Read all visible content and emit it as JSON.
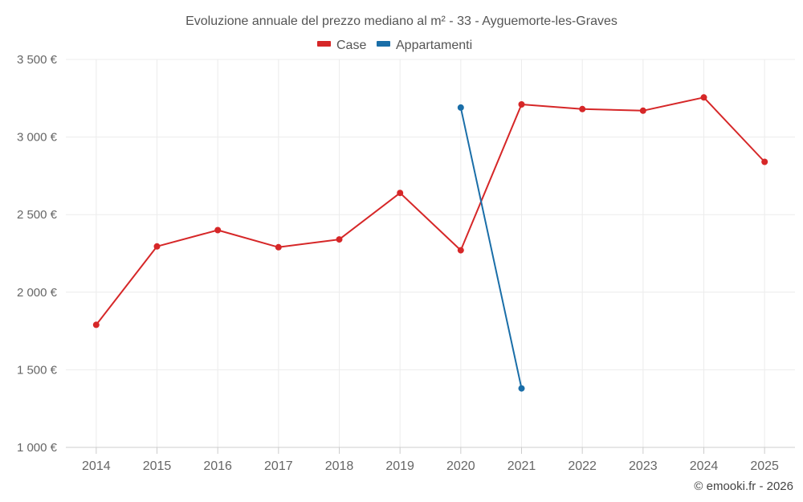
{
  "chart_data": {
    "type": "line",
    "title": "Evoluzione annuale del prezzo mediano al m² - 33 - Ayguemorte-les-Graves",
    "x": [
      "2014",
      "2015",
      "2016",
      "2017",
      "2018",
      "2019",
      "2020",
      "2021",
      "2022",
      "2023",
      "2024",
      "2025"
    ],
    "ylim": [
      1000,
      3500
    ],
    "yticks": [
      1000,
      1500,
      2000,
      2500,
      3000,
      3500
    ],
    "ytick_labels": [
      "1 000 €",
      "1 500 €",
      "2 000 €",
      "2 500 €",
      "3 000 €",
      "3 500 €"
    ],
    "grid": true,
    "legend_position": "top-center",
    "series": [
      {
        "name": "Case",
        "color": "#d62728",
        "values": [
          1790,
          2295,
          2400,
          2290,
          2340,
          2640,
          2270,
          3210,
          3180,
          3170,
          3255,
          2840
        ]
      },
      {
        "name": "Appartamenti",
        "color": "#1a6ea8",
        "values": [
          null,
          null,
          null,
          null,
          null,
          null,
          3190,
          1380,
          null,
          null,
          null,
          null
        ]
      }
    ],
    "credit": "© emooki.fr - 2026"
  }
}
